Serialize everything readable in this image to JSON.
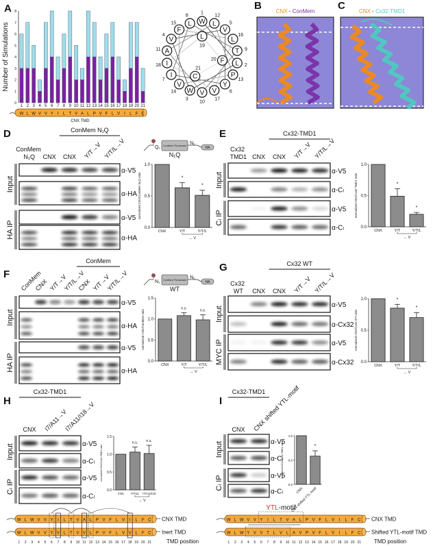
{
  "panels": {
    "A": {
      "label": "A",
      "tmd_label": "CNX TMD"
    },
    "wheel": {
      "residues": [
        "W",
        "L",
        "W",
        "V",
        "V",
        "Y",
        "I",
        "L",
        "T",
        "V",
        "A",
        "L",
        "P",
        "V",
        "F",
        "L",
        "V",
        "I",
        "L",
        "F",
        "C"
      ],
      "highlighted_positions": [
        6,
        9,
        12
      ],
      "highlight_color": "#d42a2a"
    },
    "B": {
      "label": "B",
      "title_a": "CNX",
      "sep": " - ",
      "title_b": "ConMem",
      "color_a": "#ef8a1a",
      "color_b": "#7a2fa6",
      "bg": "#8e86d6"
    },
    "C": {
      "label": "C",
      "title_a": "CNX",
      "sep": " - ",
      "title_b": "Cx32-TMD1",
      "color_a": "#ef8a1a",
      "color_b": "#4fc9c0",
      "bg": "#8e86d6"
    },
    "D": {
      "label": "D",
      "group_label": "ConMem N₁Q",
      "lanes": [
        "ConMem N₁Q",
        "CNX",
        "CNX",
        "Y/T→V",
        "Y/T/L→V"
      ],
      "sections": [
        "Input",
        "HA IP"
      ],
      "rows": [
        {
          "antibody": "α-V5",
          "bands": [
            0,
            0.9,
            0.85,
            0.75,
            0.75
          ],
          "multi": false
        },
        {
          "antibody": "α-HA",
          "bands": [
            0.8,
            0,
            0.85,
            0.7,
            0.7
          ],
          "multi": true
        },
        {
          "antibody": "α-V5",
          "bands": [
            0,
            0,
            0.95,
            0.8,
            0.5
          ],
          "multi": false
        },
        {
          "antibody": "α-HA",
          "bands": [
            0.8,
            0,
            0.95,
            0.9,
            0.9
          ],
          "multi": true
        }
      ],
      "construct": {
        "n1": "Q₁",
        "box": "ConMem TM-domain",
        "n2": "N₂",
        "tag": "HA",
        "name": "N₁Q"
      }
    },
    "E": {
      "label": "E",
      "group_label": "Cx32-TMD1",
      "lanes": [
        "Cx32 TMD1",
        "CNX",
        "CNX",
        "Y/T→V",
        "Y/T/L→V"
      ],
      "sections": [
        "Input",
        "Cₗ IP"
      ],
      "rows": [
        {
          "antibody": "α-V5",
          "bands": [
            0,
            0.4,
            0.95,
            0.9,
            0.85
          ],
          "multi": false
        },
        {
          "antibody": "α-Cₗ",
          "bands": [
            0.9,
            0,
            0.5,
            0.3,
            0.45
          ],
          "multi": false
        },
        {
          "antibody": "α-V5",
          "bands": [
            0,
            0.05,
            0.9,
            0.45,
            0.15
          ],
          "multi": false
        },
        {
          "antibody": "α-Cₗ",
          "bands": [
            0.6,
            0,
            0.8,
            0.65,
            0.6
          ],
          "multi": false
        }
      ]
    },
    "F": {
      "label": "F",
      "group_label": "ConMem",
      "lanes": [
        "ConMem",
        "CNX",
        "Y/T→V",
        "Y/T/L→V",
        "CNX",
        "Y/T→V",
        "Y/T/L→V"
      ],
      "sections": [
        "Input",
        "HA IP"
      ],
      "rows": [
        {
          "antibody": "α-V5",
          "bands": [
            0,
            0.8,
            0.5,
            0.4,
            0.8,
            0.75,
            0.75
          ],
          "multi": false
        },
        {
          "antibody": "α-HA",
          "bands": [
            0.7,
            0,
            0,
            0,
            0.8,
            0.8,
            0.85
          ],
          "multi": true
        },
        {
          "antibody": "α-V5",
          "bands": [
            0,
            0,
            0,
            0,
            0.7,
            0.7,
            0.75
          ],
          "multi": false
        },
        {
          "antibody": "α-HA",
          "bands": [
            0.8,
            0,
            0,
            0,
            0.95,
            0.95,
            1
          ],
          "multi": true
        }
      ],
      "construct": {
        "n1": "N₁",
        "box": "ConMem TM-domain",
        "n2": "N₂",
        "tag": "HA",
        "name": "WT"
      }
    },
    "G": {
      "label": "G",
      "group_label": "Cx32 WT",
      "lanes": [
        "Cx32 WT",
        "CNX",
        "CNX",
        "Y/T→V",
        "Y/T/L→V"
      ],
      "sections": [
        "Input",
        "MYC IP"
      ],
      "rows": [
        {
          "antibody": "α-V5",
          "bands": [
            0,
            0.5,
            0.9,
            0.85,
            0.85
          ],
          "multi": false
        },
        {
          "antibody": "α-Cx32",
          "bands": [
            0.25,
            0,
            0.9,
            0.6,
            0.55
          ],
          "multi": false
        },
        {
          "antibody": "α-V5",
          "bands": [
            0.05,
            0.05,
            0.85,
            0.8,
            0.45
          ],
          "multi": false
        },
        {
          "antibody": "α-Cx32",
          "bands": [
            0.5,
            0,
            0.85,
            0.65,
            0.65
          ],
          "multi": false
        }
      ]
    },
    "H": {
      "label": "H",
      "group_label": "Cx32-TMD1",
      "lanes": [
        "CNX",
        "I7/A11→V",
        "I7/A11/I18→V"
      ],
      "sections": [
        "Input",
        "Cₗ IP"
      ],
      "rows": [
        {
          "antibody": "α-V5",
          "bands": [
            0.9,
            0.85,
            0.8
          ],
          "multi": false
        },
        {
          "antibody": "α-Cₗ",
          "bands": [
            0.6,
            0.8,
            0.5
          ],
          "multi": false
        },
        {
          "antibody": "α-V5",
          "bands": [
            0.85,
            0.7,
            0.6
          ],
          "multi": false
        },
        {
          "antibody": "α-Cₗ",
          "bands": [
            0.55,
            0.65,
            0.6
          ],
          "multi": false
        }
      ],
      "tmd": {
        "rows": [
          {
            "name": "CNX TMD",
            "sequence": [
              "W",
              "L",
              "W",
              "V",
              "V",
              "Y",
              "I",
              "L",
              "T",
              "V",
              "A",
              "L",
              "P",
              "V",
              "F",
              "L",
              "V",
              "I",
              "L",
              "F",
              "C"
            ]
          },
          {
            "name": "Inert TMD",
            "sequence": [
              "W",
              "L",
              "W",
              "V",
              "V",
              "Y",
              "V",
              "L",
              "T",
              "V",
              "V",
              "L",
              "P",
              "V",
              "F",
              "L",
              "V",
              "V",
              "L",
              "F",
              "C"
            ]
          }
        ],
        "mutated_positions": [
          7,
          11,
          18
        ],
        "motif_positions": [
          6,
          9,
          12
        ],
        "position_label": "TMD position"
      }
    },
    "I": {
      "label": "I",
      "group_label": "Cx32-TMD1",
      "lanes": [
        "CNX",
        "CNX shifted YTL-motif"
      ],
      "sections": [
        "Input",
        "Cₗ IP"
      ],
      "rows": [
        {
          "antibody": "α-V5",
          "bands": [
            0.85,
            0.85
          ],
          "multi": false
        },
        {
          "antibody": "α-Cₗ",
          "bands": [
            0.65,
            0.7
          ],
          "multi": false
        },
        {
          "antibody": "α-V5",
          "bands": [
            0.8,
            0.2
          ],
          "multi": false
        },
        {
          "antibody": "α-Cₗ",
          "bands": [
            0.65,
            0.8
          ],
          "multi": false
        }
      ],
      "tmd": {
        "motif_title": [
          "Y",
          "T",
          "L",
          "-motif"
        ],
        "rows": [
          {
            "name": "CNX TMD",
            "sequence": [
              "W",
              "L",
              "W",
              "V",
              "V",
              "Y",
              "I",
              "L",
              "T",
              "V",
              "A",
              "L",
              "P",
              "V",
              "F",
              "L",
              "V",
              "I",
              "L",
              "F",
              "C"
            ],
            "red": [
              6,
              9,
              12
            ]
          },
          {
            "name": "Shifted YTL-motif TMD",
            "sequence": [
              "W",
              "L",
              "W",
              "Y",
              "V",
              "V",
              "T",
              "L",
              "V",
              "L",
              "A",
              "V",
              "P",
              "V",
              "F",
              "L",
              "V",
              "I",
              "L",
              "F",
              "C"
            ],
            "red": [
              4,
              7,
              10
            ]
          }
        ],
        "position_label": "TMD position"
      }
    }
  },
  "chart_data": [
    {
      "panel": "A",
      "type": "bar",
      "stacked": true,
      "categories": [
        "1",
        "2",
        "3",
        "4",
        "5",
        "6",
        "7",
        "8",
        "9",
        "10",
        "11",
        "12",
        "13",
        "14",
        "15",
        "16",
        "17",
        "18",
        "19",
        "20",
        "21"
      ],
      "x_residues": [
        "W",
        "L",
        "W",
        "V",
        "V",
        "Y",
        "I",
        "L",
        "T",
        "V",
        "A",
        "L",
        "P",
        "V",
        "F",
        "L",
        "V",
        "I",
        "L",
        "F",
        "C"
      ],
      "series": [
        {
          "values": [
            3,
            3,
            3,
            1,
            3,
            4,
            2,
            3,
            4,
            2,
            2,
            4,
            4,
            2,
            3,
            4,
            2,
            1,
            3,
            4,
            1
          ],
          "color": "#7b22a0"
        },
        {
          "values": [
            3,
            4,
            2,
            1,
            4,
            4,
            2,
            3,
            4,
            3,
            1,
            4,
            3,
            2,
            3,
            3,
            2,
            1,
            4,
            3,
            2
          ],
          "color": "#9fdde8"
        }
      ],
      "ylabel": "Number of Simulations",
      "xlabel": "CNX TMD",
      "ylim": [
        0,
        8
      ],
      "yticks": [
        "0",
        "1",
        "2",
        "3",
        "4",
        "5",
        "6",
        "7",
        "8"
      ]
    },
    {
      "panel": "D",
      "type": "bar",
      "categories": [
        "CNX",
        "Y/T",
        "Y/T/L"
      ],
      "values": [
        1.0,
        0.63,
        0.51
      ],
      "errors": [
        0,
        0.08,
        0.08
      ],
      "significance": [
        "",
        "*",
        "*"
      ],
      "bracket_label": "→ V",
      "ylabel": "normalized CNX/ConMem N₁Q ratio",
      "ylim": [
        0,
        1.0
      ],
      "yticks": [
        "0.0",
        "0.5",
        "1.0"
      ],
      "tick_values": [
        0,
        0.5,
        1.0
      ]
    },
    {
      "panel": "E",
      "type": "bar",
      "categories": [
        "CNX",
        "Y/T",
        "Y/T/L"
      ],
      "values": [
        1.0,
        0.49,
        0.2
      ],
      "errors": [
        0,
        0.12,
        0.03
      ],
      "significance": [
        "",
        "*",
        "*"
      ],
      "bracket_label": "→ V",
      "ylabel": "normalized CNX/Cx32-TMD1 ratio",
      "ylim": [
        0,
        1.0
      ],
      "yticks": [
        "0.0",
        "0.5",
        "1.0"
      ],
      "tick_values": [
        0,
        0.5,
        1.0
      ]
    },
    {
      "panel": "F",
      "type": "bar",
      "categories": [
        "CNX",
        "Y/T",
        "Y/T/L"
      ],
      "values": [
        1.0,
        1.08,
        0.98
      ],
      "errors": [
        0,
        0.07,
        0.12
      ],
      "significance": [
        "",
        "n.s.",
        "n.s."
      ],
      "bracket_label": "→ V",
      "ylabel": "normalized CNX/ConMem ratio",
      "ylim": [
        0,
        1.5
      ],
      "yticks": [
        "0.0",
        "0.5",
        "1.0",
        "1.5"
      ],
      "tick_values": [
        0,
        0.5,
        1.0,
        1.5
      ]
    },
    {
      "panel": "G",
      "type": "bar",
      "categories": [
        "CNX",
        "Y/T",
        "Y/T/L"
      ],
      "values": [
        1.0,
        0.85,
        0.7
      ],
      "errors": [
        0,
        0.06,
        0.08
      ],
      "significance": [
        "",
        "*",
        "*"
      ],
      "bracket_label": "→ V",
      "ylabel": "normalized CNX/Cx32 WT ratio",
      "ylim": [
        0,
        1.0
      ],
      "yticks": [
        "0.0",
        "0.5",
        "1.0"
      ],
      "tick_values": [
        0,
        0.5,
        1.0
      ]
    },
    {
      "panel": "H",
      "type": "bar",
      "categories": [
        "CNX",
        "I7/A11",
        "I7/A11/I18"
      ],
      "values": [
        1.0,
        1.06,
        1.02
      ],
      "errors": [
        0,
        0.14,
        0.23
      ],
      "significance": [
        "",
        "n.s.",
        "n.s."
      ],
      "bracket_label": "→ V",
      "ylabel": "normalized CNX/Cx32-TMD1 ratio",
      "ylim": [
        0,
        1.5
      ],
      "yticks": [
        "0.0",
        "0.5",
        "1.0",
        "1.5"
      ],
      "tick_values": [
        0,
        0.5,
        1.0,
        1.5
      ]
    },
    {
      "panel": "I",
      "type": "bar",
      "categories": [
        "CNX",
        "CNX shifted YTL motif"
      ],
      "values": [
        1.0,
        0.58
      ],
      "errors": [
        0,
        0.11
      ],
      "significance": [
        "",
        "*"
      ],
      "ylabel": "normalized CNX/Cx32-TMD1 ratio",
      "ylim": [
        0,
        1.0
      ],
      "yticks": [
        "0.0",
        "0.5",
        "1.0"
      ],
      "tick_values": [
        0,
        0.5,
        1.0
      ]
    }
  ]
}
